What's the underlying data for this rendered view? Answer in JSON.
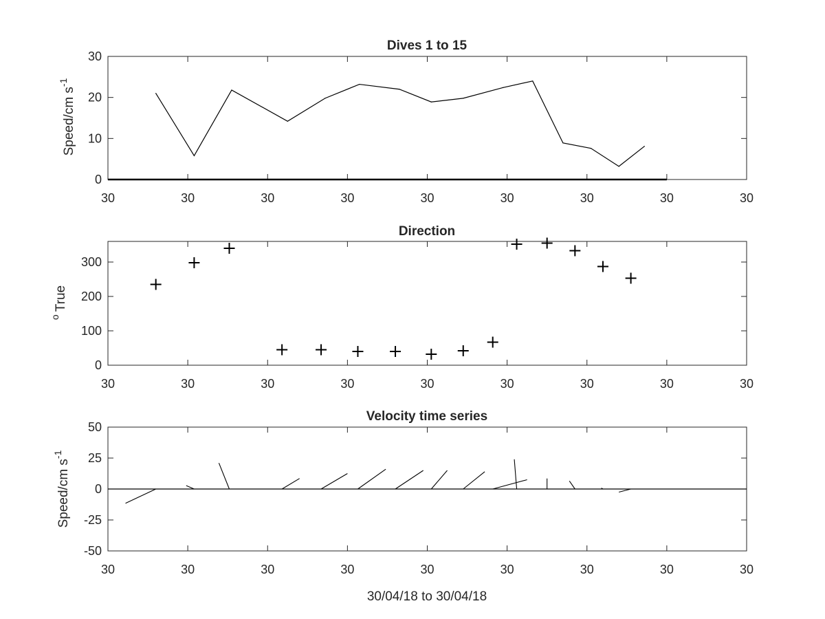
{
  "chart_data": [
    {
      "type": "line",
      "title": "Dives 1 to 15",
      "ylabel": "Speed/cm s",
      "ylabel_superscript": "-1",
      "xlabel": "",
      "ylim": [
        0,
        30
      ],
      "yticks": [
        0,
        10,
        20,
        30
      ],
      "xlim": [
        0,
        8
      ],
      "xticks": [
        0,
        1,
        2,
        3,
        4,
        5,
        6,
        7,
        8
      ],
      "xtick_labels": [
        "30",
        "30",
        "30",
        "30",
        "30",
        "30",
        "30",
        "30",
        "30"
      ],
      "baseline": {
        "y": 0,
        "x": [
          0,
          7
        ]
      },
      "series": [
        {
          "x": [
            0.6,
            1.08,
            1.55,
            2.25,
            2.72,
            3.15,
            3.65,
            4.05,
            4.45,
            4.95,
            5.32,
            5.7,
            6.05,
            6.4,
            6.72
          ],
          "values": [
            21,
            5.8,
            21.8,
            14.2,
            19.8,
            23.2,
            22,
            18.9,
            19.8,
            22.4,
            24,
            8.9,
            7.6,
            3.2,
            8.1
          ]
        }
      ]
    },
    {
      "type": "scatter",
      "title": "Direction",
      "ylabel": "True",
      "ylabel_superscript": "o",
      "xlabel": "",
      "ylim": [
        0,
        360
      ],
      "yticks": [
        0,
        100,
        200,
        300
      ],
      "xlim": [
        0,
        8
      ],
      "xticks": [
        0,
        1,
        2,
        3,
        4,
        5,
        6,
        7,
        8
      ],
      "xtick_labels": [
        "30",
        "30",
        "30",
        "30",
        "30",
        "30",
        "30",
        "30",
        "30"
      ],
      "marker": "+",
      "series": [
        {
          "x": [
            0.6,
            1.08,
            1.52,
            2.18,
            2.67,
            3.13,
            3.6,
            4.05,
            4.45,
            4.82,
            5.12,
            5.5,
            5.85,
            6.2,
            6.55
          ],
          "values": [
            235,
            298,
            340,
            45,
            45,
            40,
            40,
            32,
            42,
            67,
            352,
            355,
            333,
            287,
            253
          ]
        }
      ]
    },
    {
      "type": "line",
      "subtype": "stick-vectors",
      "title": "Velocity time series",
      "ylabel": "Speed/cm s",
      "ylabel_superscript": "-1",
      "xlabel": "30/04/18 to 30/04/18",
      "ylim": [
        -50,
        50
      ],
      "yticks": [
        -50,
        -25,
        0,
        25,
        50
      ],
      "xlim": [
        0,
        8
      ],
      "xticks": [
        0,
        1,
        2,
        3,
        4,
        5,
        6,
        7,
        8
      ],
      "xtick_labels": [
        "30",
        "30",
        "30",
        "30",
        "30",
        "30",
        "30",
        "30",
        "30"
      ],
      "baseline": {
        "y": 0,
        "x": [
          0,
          8
        ]
      },
      "sticks": [
        {
          "x0": 0.6,
          "y0": 0,
          "x1": 0.22,
          "y1": -11.5
        },
        {
          "x0": 1.08,
          "y0": 0,
          "x1": 0.98,
          "y1": 2.8
        },
        {
          "x0": 1.52,
          "y0": 0,
          "x1": 1.39,
          "y1": 21
        },
        {
          "x0": 2.18,
          "y0": 0,
          "x1": 2.4,
          "y1": 8.5
        },
        {
          "x0": 2.67,
          "y0": 0,
          "x1": 3.0,
          "y1": 12.5
        },
        {
          "x0": 3.13,
          "y0": 0,
          "x1": 3.48,
          "y1": 16
        },
        {
          "x0": 3.6,
          "y0": 0,
          "x1": 3.95,
          "y1": 15
        },
        {
          "x0": 4.05,
          "y0": 0,
          "x1": 4.25,
          "y1": 15
        },
        {
          "x0": 4.45,
          "y0": 0,
          "x1": 4.72,
          "y1": 14
        },
        {
          "x0": 4.82,
          "y0": 0,
          "x1": 5.25,
          "y1": 7.5
        },
        {
          "x0": 5.12,
          "y0": 0,
          "x1": 5.09,
          "y1": 24
        },
        {
          "x0": 5.5,
          "y0": 0,
          "x1": 5.5,
          "y1": 8.5
        },
        {
          "x0": 5.85,
          "y0": 0,
          "x1": 5.78,
          "y1": 6.5
        },
        {
          "x0": 6.2,
          "y0": 0,
          "x1": 6.18,
          "y1": 0.8
        },
        {
          "x0": 6.55,
          "y0": 0,
          "x1": 6.4,
          "y1": -2.5
        }
      ]
    }
  ]
}
